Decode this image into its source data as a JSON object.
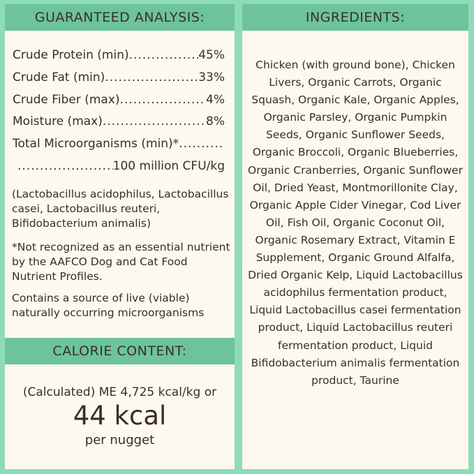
{
  "colors": {
    "background": "#8edcb6",
    "header": "#6cc39c",
    "panel": "#fdf9f0",
    "text": "#3b2c26"
  },
  "analysis": {
    "title": "GUARANTEED ANALYSIS:",
    "rows": [
      {
        "label": "Crude Protein (min)",
        "value": "45%"
      },
      {
        "label": "Crude Fat (min)",
        "value": "33%"
      },
      {
        "label": "Crude Fiber (max)",
        "value": "4%"
      },
      {
        "label": "Moisture (max)",
        "value": "8%"
      },
      {
        "label": "Total Microorganisms (min)*",
        "value": ""
      },
      {
        "label": "",
        "value": "100 million CFU/kg"
      }
    ],
    "strains": "(Lactobacillus acidophilus, Lactobacillus casei, Lactobacillus reuteri, Bifidobacterium animalis)",
    "footnote": "*Not recognized as an essential nutrient by the AAFCO Dog and Cat Food Nutrient Profiles.",
    "live": "Contains a source of live (viable) naturally occurring microorganisms"
  },
  "calorie": {
    "title": "CALORIE CONTENT:",
    "line": "(Calculated) ME 4,725 kcal/kg or",
    "big": "44 kcal",
    "unit": "per nugget"
  },
  "ingredients": {
    "title": "INGREDIENTS:",
    "text": "Chicken (with ground bone), Chicken Livers, Organic Carrots, Organic Squash, Organic Kale, Organic Apples, Organic Parsley, Organic Pumpkin Seeds, Organic Sunflower Seeds, Organic Broccoli, Organic Blueberries, Organic Cranberries, Organic Sunflower Oil, Dried Yeast, Montmorillonite Clay, Organic Apple Cider Vinegar, Cod Liver Oil, Fish Oil, Organic Coconut Oil, Organic Rosemary Extract, Vitamin E Supplement, Organic Ground Alfalfa, Dried Organic Kelp, Liquid Lactobacillus acidophilus fermentation product, Liquid Lactobacillus casei fermentation product, Liquid Lactobacillus reuteri fermentation product, Liquid Bifidobacterium animalis fermentation product, Taurine"
  }
}
